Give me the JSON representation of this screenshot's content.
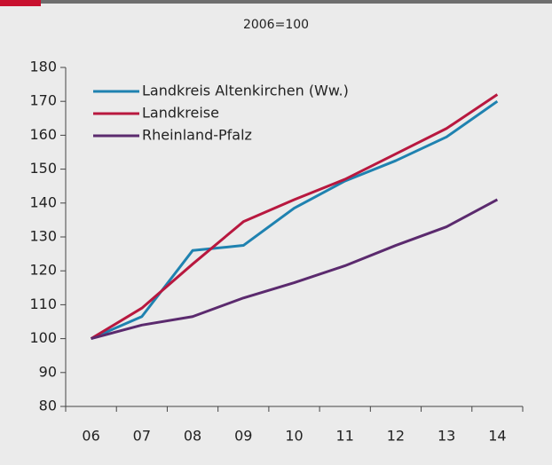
{
  "chart_data": {
    "type": "line",
    "subtitle": "2006=100",
    "categories": [
      "06",
      "07",
      "08",
      "09",
      "10",
      "11",
      "12",
      "13",
      "14"
    ],
    "series": [
      {
        "name": "Landkreis Altenkirchen (Ww.)",
        "color": "#1f82b0",
        "values": [
          100,
          106.5,
          126,
          127.5,
          138.5,
          146.5,
          152.5,
          159.5,
          170
        ]
      },
      {
        "name": "Landkreise",
        "color": "#b8183f",
        "values": [
          100,
          109,
          122,
          134.5,
          141,
          147,
          154.5,
          162,
          172
        ]
      },
      {
        "name": "Rheinland-Pfalz",
        "color": "#5b2a6e",
        "values": [
          100,
          104,
          106.5,
          112,
          116.5,
          121.5,
          127.5,
          133,
          141
        ]
      }
    ],
    "ylim": [
      80,
      180
    ],
    "yticks": [
      80,
      90,
      100,
      110,
      120,
      130,
      140,
      150,
      160,
      170,
      180
    ],
    "legend": "upper left"
  }
}
